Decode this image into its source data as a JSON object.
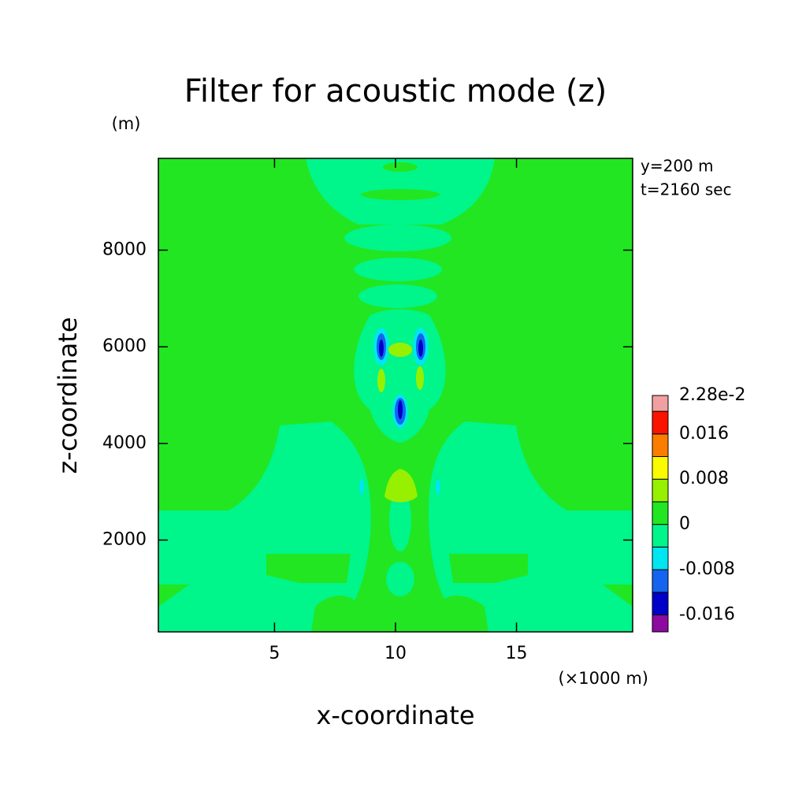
{
  "chart_data": {
    "type": "contour",
    "title": "Filter for acoustic mode (z)",
    "x_label": "x-coordinate",
    "y_label": "z-coordinate",
    "y_unit": "(m)",
    "x_unit": "(×1000 m)",
    "annotations": [
      "y=200 m",
      "t=2160 sec"
    ],
    "xlim": [
      0.2,
      19.8
    ],
    "xticks": [
      5,
      10,
      15
    ],
    "ylim": [
      100,
      9900
    ],
    "yticks": [
      2000,
      4000,
      6000,
      8000
    ],
    "colorbar": {
      "levels": [
        -0.019,
        -0.016,
        -0.012,
        -0.008,
        -0.004,
        0,
        0.004,
        0.008,
        0.012,
        0.016,
        0.02,
        0.0228
      ],
      "colors": [
        "#8c0aa0",
        "#0000c8",
        "#1464f0",
        "#00e6f0",
        "#00f58a",
        "#22e622",
        "#96f000",
        "#fafa00",
        "#fa7d00",
        "#fa1400",
        "#f0a0a0"
      ],
      "ticks": [
        {
          "value": 0.0228,
          "label": "2.28e-2"
        },
        0.016,
        0.008,
        0,
        -0.008,
        -0.016
      ]
    }
  }
}
